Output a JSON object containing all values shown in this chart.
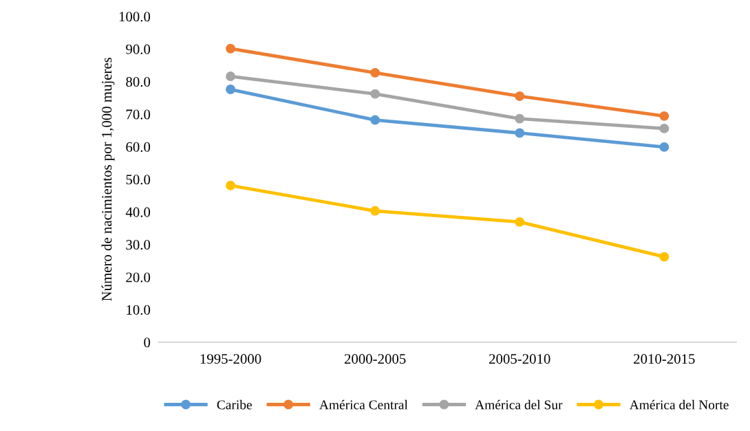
{
  "chart_data": {
    "type": "line",
    "ylabel": "Número de nacimientos por 1,000 mujeres",
    "categories": [
      "1995-2000",
      "2000-2005",
      "2005-2010",
      "2010-2015"
    ],
    "series": [
      {
        "name": "Caribe",
        "color": "#5b9bd5",
        "values": [
          77.6,
          68.2,
          64.2,
          59.9
        ]
      },
      {
        "name": "América Central",
        "color": "#ed7d31",
        "values": [
          90.1,
          82.7,
          75.5,
          69.4
        ]
      },
      {
        "name": "América del Sur",
        "color": "#a5a5a5",
        "values": [
          81.6,
          76.2,
          68.6,
          65.6
        ]
      },
      {
        "name": "América del Norte",
        "color": "#ffc000",
        "values": [
          48.1,
          40.3,
          36.9,
          26.2
        ]
      }
    ],
    "ylim": [
      0,
      100
    ],
    "yticks": [
      0,
      {
        "value": 10,
        "label": "10.0"
      },
      {
        "value": 20,
        "label": "20.0"
      },
      {
        "value": 30,
        "label": "30.0"
      },
      {
        "value": 40,
        "label": "40.0"
      },
      {
        "value": 50,
        "label": "50.0"
      },
      {
        "value": 60,
        "label": "60.0"
      },
      {
        "value": 70,
        "label": "70.0"
      },
      {
        "value": 80,
        "label": "80.0"
      },
      {
        "value": 90,
        "label": "90.0"
      },
      {
        "value": 100,
        "label": "100.0"
      }
    ],
    "grid": false,
    "legend": "bottom",
    "marker": "circle",
    "line_style": "solid"
  }
}
